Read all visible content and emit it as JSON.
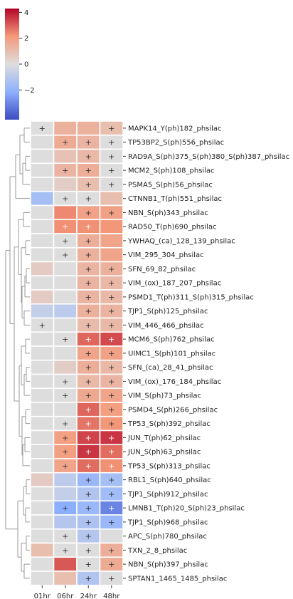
{
  "chart_data": {
    "type": "heatmap",
    "title": "",
    "xlabel": "",
    "ylabel": "",
    "columns": [
      "01hr",
      "06hr",
      "24hr",
      "48hr"
    ],
    "rows": [
      "MAPK14_Y(ph)182_phsilac",
      "TP53BP2_S(ph)556_phsilac",
      "RAD9A_S(ph)375_S(ph)380_S(ph)387_phsilac",
      "MCM2_S(ph)108_phsilac",
      "PSMA5_S(ph)56_phsilac",
      "CTNNB1_T(ph)551_phsilac",
      "NBN_S(ph)343_phsilac",
      "RAD50_T(ph)690_phsilac",
      "YWHAQ_(ca)_128_139_phsilac",
      "VIM_295_304_phsilac",
      "SFN_69_82_phsilac",
      "VIM_(ox)_187_207_phsilac",
      "PSMD1_T(ph)311_S(ph)315_phsilac",
      "TJP1_S(ph)125_phsilac",
      "VIM_446_466_phsilac",
      "MCM6_S(ph)762_phsilac",
      "UIMC1_S(ph)101_phsilac",
      "SFN_(ca)_28_41_phsilac",
      "VIM_(ox)_176_184_phsilac",
      "VIM_S(ph)73_phsilac",
      "PSMD4_S(ph)266_phsilac",
      "TP53_S(ph)392_phsilac",
      "JUN_T(ph)62_phsilac",
      "JUN_S(ph)63_phsilac",
      "TP53_S(ph)313_phsilac",
      "RBL1_S(ph)640_phsilac",
      "TJP1_S(ph)912_phsilac",
      "LMNB1_T(ph)20_S(ph)23_phsilac",
      "TJP1_S(ph)968_phsilac",
      "APC_S(ph)780_phsilac",
      "TXN_2_8_phsilac",
      "NBN_S(ph)397_phsilac",
      "SPTAN1_1465_1485_phsilac"
    ],
    "values": [
      [
        0,
        1.4,
        1.4,
        1.0
      ],
      [
        0,
        1.6,
        1.3,
        0
      ],
      [
        0,
        0.9,
        1.2,
        0
      ],
      [
        0,
        1.3,
        1.5,
        0
      ],
      [
        0,
        0.5,
        1.0,
        0
      ],
      [
        -1.5,
        0,
        0,
        1.0
      ],
      [
        0,
        2.4,
        1.9,
        1.9
      ],
      [
        0,
        2.3,
        2.3,
        2.2
      ],
      [
        0,
        0,
        1.5,
        1.8
      ],
      [
        0,
        0,
        1.4,
        1.8
      ],
      [
        0.6,
        0,
        1.3,
        1.4
      ],
      [
        0,
        0,
        1.3,
        1.2
      ],
      [
        0.6,
        0,
        1.3,
        1.2
      ],
      [
        -0.7,
        -0.9,
        1.4,
        1.3
      ],
      [
        0,
        0,
        1.1,
        1.2
      ],
      [
        0,
        0,
        2.9,
        3.3
      ],
      [
        0,
        0,
        1.8,
        1.9
      ],
      [
        0,
        0.5,
        1.5,
        1.2
      ],
      [
        0,
        0,
        1.2,
        1.3
      ],
      [
        0,
        0,
        1.7,
        1.8
      ],
      [
        0,
        0,
        2.9,
        2.0
      ],
      [
        0,
        0,
        2.7,
        2.2
      ],
      [
        0,
        2.0,
        3.4,
        3.6
      ],
      [
        0,
        2.0,
        3.6,
        2.8
      ],
      [
        0,
        1.8,
        2.8,
        2.3
      ],
      [
        0.6,
        -0.9,
        -1.8,
        -1.5
      ],
      [
        0,
        -0.7,
        -1.2,
        -1.6
      ],
      [
        0,
        -2.2,
        -1.8,
        -3.1
      ],
      [
        0,
        -1.1,
        -1.3,
        -1.8
      ],
      [
        0,
        0,
        -1.1,
        0
      ],
      [
        1.0,
        0,
        0,
        1.5
      ],
      [
        0,
        3.1,
        0,
        1.6
      ],
      [
        0,
        1.0,
        -1.2,
        0
      ]
    ],
    "significant": [
      [
        1,
        0,
        0,
        1
      ],
      [
        0,
        1,
        1,
        1
      ],
      [
        0,
        0,
        1,
        1
      ],
      [
        0,
        1,
        1,
        1
      ],
      [
        0,
        0,
        1,
        1
      ],
      [
        0,
        1,
        1,
        0
      ],
      [
        0,
        0,
        1,
        1
      ],
      [
        0,
        1,
        1,
        0
      ],
      [
        0,
        1,
        1,
        0
      ],
      [
        0,
        1,
        1,
        0
      ],
      [
        0,
        0,
        1,
        1
      ],
      [
        0,
        0,
        1,
        1
      ],
      [
        0,
        0,
        1,
        1
      ],
      [
        0,
        0,
        1,
        1
      ],
      [
        1,
        0,
        1,
        1
      ],
      [
        0,
        1,
        1,
        1
      ],
      [
        0,
        0,
        1,
        1
      ],
      [
        0,
        0,
        1,
        1
      ],
      [
        0,
        1,
        1,
        1
      ],
      [
        0,
        1,
        1,
        1
      ],
      [
        0,
        0,
        1,
        1
      ],
      [
        0,
        1,
        1,
        1
      ],
      [
        0,
        1,
        1,
        1
      ],
      [
        0,
        1,
        1,
        1
      ],
      [
        0,
        1,
        1,
        1
      ],
      [
        0,
        0,
        1,
        1
      ],
      [
        0,
        0,
        1,
        1
      ],
      [
        0,
        1,
        1,
        1
      ],
      [
        0,
        0,
        1,
        1
      ],
      [
        0,
        1,
        1,
        0
      ],
      [
        0,
        1,
        1,
        1
      ],
      [
        0,
        0,
        1,
        1
      ],
      [
        0,
        0,
        1,
        1
      ]
    ],
    "marker": "+",
    "colorbar": {
      "range": [
        -4.3,
        4.3
      ],
      "ticks": [
        -2,
        0,
        2,
        4
      ],
      "colormap": "coolwarm"
    },
    "dendrogram": {
      "side": "left",
      "color": "#999999"
    }
  }
}
